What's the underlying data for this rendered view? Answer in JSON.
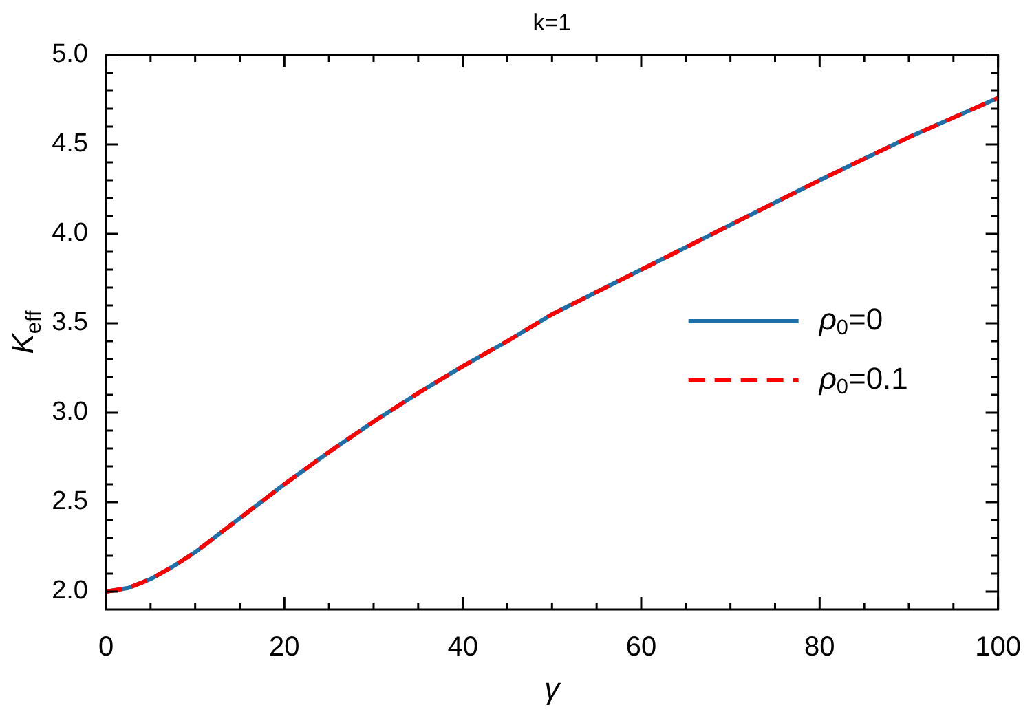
{
  "chart_data": {
    "type": "line",
    "title": "k=1",
    "xlabel": "γ",
    "ylabel": "K$_{eff}$",
    "x": [
      0,
      2.5,
      5,
      7.5,
      10,
      15,
      20,
      25,
      30,
      35,
      40,
      45,
      50,
      60,
      70,
      80,
      90,
      100
    ],
    "series": [
      {
        "name": "ρ$_{0}$=0",
        "color": "#1f6fa8",
        "line_style": "solid",
        "values": [
          2.0,
          2.02,
          2.07,
          2.14,
          2.22,
          2.41,
          2.6,
          2.78,
          2.95,
          3.11,
          3.26,
          3.4,
          3.55,
          3.8,
          4.05,
          4.3,
          4.54,
          4.76
        ]
      },
      {
        "name": "ρ$_{0}$=0.1",
        "color": "#ff0000",
        "line_style": "dashed",
        "values": [
          2.0,
          2.02,
          2.07,
          2.14,
          2.22,
          2.41,
          2.6,
          2.78,
          2.95,
          3.11,
          3.26,
          3.4,
          3.55,
          3.8,
          4.05,
          4.3,
          4.54,
          4.76
        ]
      }
    ],
    "xlim": [
      0,
      100
    ],
    "xticks": [
      0,
      {
        "value": 5,
        "label": null
      },
      {
        "value": 10,
        "label": null
      },
      {
        "value": 15,
        "label": null
      },
      20,
      {
        "value": 25,
        "label": null
      },
      {
        "value": 30,
        "label": null
      },
      {
        "value": 35,
        "label": null
      },
      40,
      {
        "value": 45,
        "label": null
      },
      {
        "value": 50,
        "label": null
      },
      {
        "value": 55,
        "label": null
      },
      60,
      {
        "value": 65,
        "label": null
      },
      {
        "value": 70,
        "label": null
      },
      {
        "value": 75,
        "label": null
      },
      80,
      {
        "value": 85,
        "label": null
      },
      {
        "value": 90,
        "label": null
      },
      {
        "value": 95,
        "label": null
      },
      100
    ],
    "ylim": [
      1.9,
      5.0
    ],
    "yticks": [
      {
        "value": 2.0,
        "label": "2.0"
      },
      {
        "value": 2.1,
        "label": null
      },
      {
        "value": 2.2,
        "label": null
      },
      {
        "value": 2.3,
        "label": null
      },
      {
        "value": 2.4,
        "label": null
      },
      {
        "value": 2.5,
        "label": "2.5"
      },
      {
        "value": 2.6,
        "label": null
      },
      {
        "value": 2.7,
        "label": null
      },
      {
        "value": 2.8,
        "label": null
      },
      {
        "value": 2.9,
        "label": null
      },
      {
        "value": 3.0,
        "label": "3.0"
      },
      {
        "value": 3.1,
        "label": null
      },
      {
        "value": 3.2,
        "label": null
      },
      {
        "value": 3.3,
        "label": null
      },
      {
        "value": 3.4,
        "label": null
      },
      {
        "value": 3.5,
        "label": "3.5"
      },
      {
        "value": 3.6,
        "label": null
      },
      {
        "value": 3.7,
        "label": null
      },
      {
        "value": 3.8,
        "label": null
      },
      {
        "value": 3.9,
        "label": null
      },
      {
        "value": 4.0,
        "label": "4.0"
      },
      {
        "value": 4.1,
        "label": null
      },
      {
        "value": 4.2,
        "label": null
      },
      {
        "value": 4.3,
        "label": null
      },
      {
        "value": 4.4,
        "label": null
      },
      {
        "value": 4.5,
        "label": "4.5"
      },
      {
        "value": 4.6,
        "label": null
      },
      {
        "value": 4.7,
        "label": null
      },
      {
        "value": 4.8,
        "label": null
      },
      {
        "value": 4.9,
        "label": null
      },
      {
        "value": 5.0,
        "label": "5.0"
      }
    ],
    "grid": false,
    "legend": "right",
    "marker": "none"
  }
}
